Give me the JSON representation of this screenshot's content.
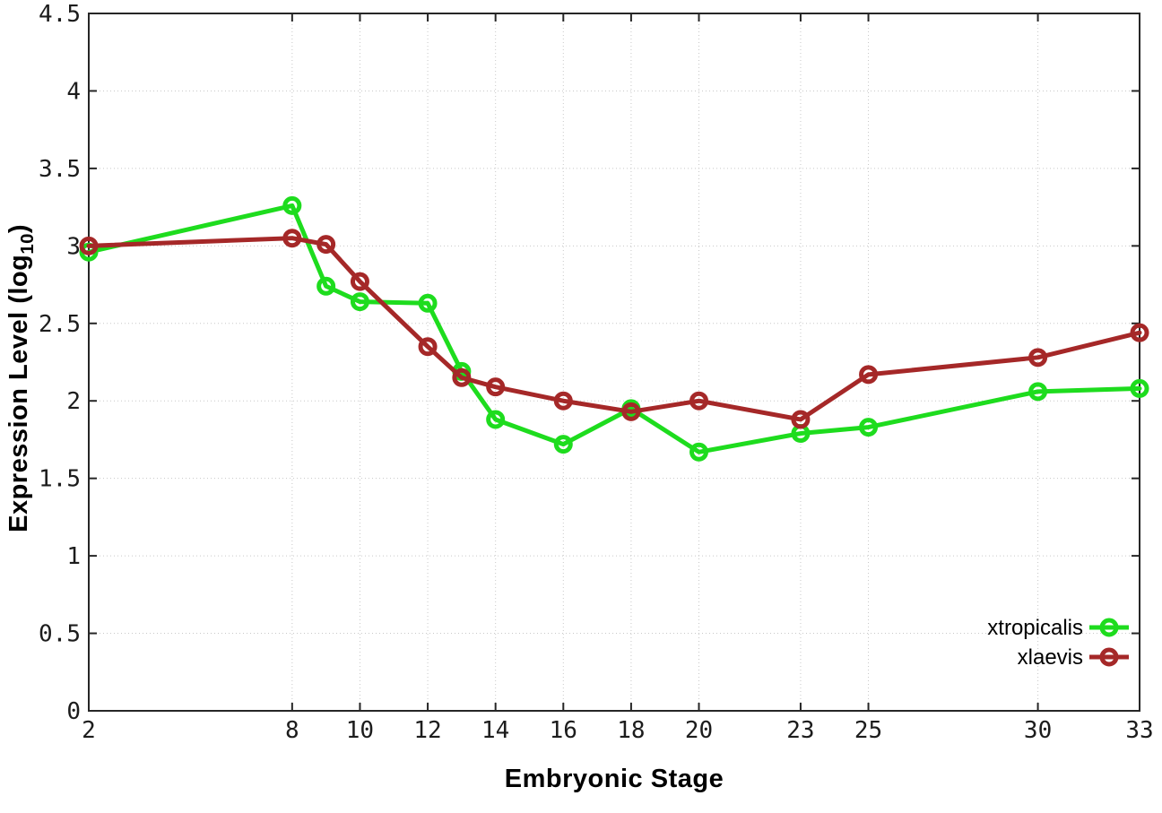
{
  "chart_data": {
    "type": "line",
    "title": "",
    "xlabel": "Embryonic Stage",
    "ylabel": "Expression Level (log10)",
    "ylabel_parts": {
      "prefix": "Expression Level (log",
      "sub": "10",
      "suffix": ")"
    },
    "xlim": [
      2,
      33
    ],
    "ylim": [
      0,
      4.5
    ],
    "x_ticks": [
      2,
      8,
      10,
      12,
      14,
      16,
      18,
      20,
      23,
      25,
      30,
      33
    ],
    "y_ticks": [
      0,
      0.5,
      1,
      1.5,
      2,
      2.5,
      3,
      3.5,
      4,
      4.5
    ],
    "grid": true,
    "legend_position": "inside-bottom-right",
    "x": [
      2,
      8,
      9,
      10,
      12,
      13,
      14,
      16,
      18,
      20,
      23,
      25,
      30,
      33
    ],
    "series": [
      {
        "name": "xtropicalis",
        "color": "#1edc1e",
        "values": [
          2.96,
          3.26,
          2.74,
          2.64,
          2.63,
          2.19,
          1.88,
          1.72,
          1.95,
          1.67,
          1.79,
          1.83,
          2.06,
          2.08
        ]
      },
      {
        "name": "xlaevis",
        "color": "#a52828",
        "values": [
          3.0,
          3.05,
          3.01,
          2.77,
          2.35,
          2.15,
          2.09,
          2.0,
          1.93,
          2.0,
          1.88,
          2.17,
          2.28,
          2.44
        ]
      }
    ]
  },
  "colors": {
    "grid": "#c8c8c8",
    "border": "#262626",
    "tick_text": "#1c1c1c"
  }
}
